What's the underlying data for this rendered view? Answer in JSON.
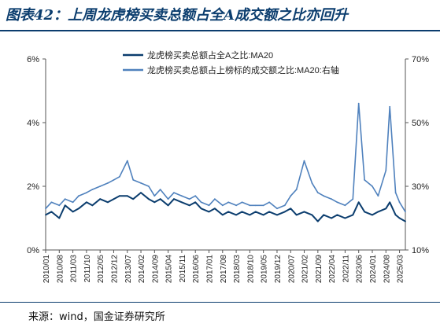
{
  "header": {
    "title": "图表42：上周龙虎榜买卖总额占全A成交额之比亦回升"
  },
  "footer": {
    "source": "来源：wind，国金证券研究所"
  },
  "chart_data": {
    "type": "line",
    "x_tick_labels": [
      "2010/01",
      "2010/08",
      "2011/03",
      "2011/10",
      "2012/05",
      "2012/12",
      "2013/07",
      "2014/02",
      "2014/09",
      "2015/04",
      "2015/11",
      "2016/06",
      "2017/01",
      "2017/08",
      "2018/03",
      "2018/10",
      "2019/05",
      "2019/12",
      "2020/07",
      "2021/02",
      "2021/09",
      "2022/04",
      "2022/11",
      "2023/06",
      "2024/01",
      "2024/08",
      "2025/03"
    ],
    "x_range": [
      "2010/01",
      "2025/06"
    ],
    "left_axis": {
      "ticks": [
        "0%",
        "2%",
        "4%",
        "6%"
      ],
      "ylim": [
        0,
        6
      ]
    },
    "right_axis": {
      "ticks": [
        "10%",
        "30%",
        "50%",
        "70%"
      ],
      "ylim": [
        10,
        70
      ]
    },
    "legend_position": "top-center",
    "series": [
      {
        "name": "龙虎榜买卖总额占全A之比:MA20",
        "axis": "left",
        "color": "#0b3d6e",
        "points": [
          [
            "2010/01",
            1.1
          ],
          [
            "2010/04",
            1.2
          ],
          [
            "2010/08",
            1.0
          ],
          [
            "2010/11",
            1.4
          ],
          [
            "2011/03",
            1.2
          ],
          [
            "2011/06",
            1.3
          ],
          [
            "2011/10",
            1.5
          ],
          [
            "2012/01",
            1.4
          ],
          [
            "2012/05",
            1.6
          ],
          [
            "2012/09",
            1.5
          ],
          [
            "2012/12",
            1.6
          ],
          [
            "2013/03",
            1.7
          ],
          [
            "2013/07",
            1.7
          ],
          [
            "2013/10",
            1.6
          ],
          [
            "2014/02",
            1.8
          ],
          [
            "2014/06",
            1.6
          ],
          [
            "2014/09",
            1.5
          ],
          [
            "2014/12",
            1.6
          ],
          [
            "2015/04",
            1.4
          ],
          [
            "2015/07",
            1.6
          ],
          [
            "2015/11",
            1.5
          ],
          [
            "2016/03",
            1.4
          ],
          [
            "2016/06",
            1.5
          ],
          [
            "2016/09",
            1.3
          ],
          [
            "2017/01",
            1.2
          ],
          [
            "2017/04",
            1.3
          ],
          [
            "2017/08",
            1.1
          ],
          [
            "2017/11",
            1.2
          ],
          [
            "2018/03",
            1.1
          ],
          [
            "2018/06",
            1.2
          ],
          [
            "2018/10",
            1.1
          ],
          [
            "2019/01",
            1.2
          ],
          [
            "2019/05",
            1.1
          ],
          [
            "2019/08",
            1.2
          ],
          [
            "2019/12",
            1.1
          ],
          [
            "2020/04",
            1.2
          ],
          [
            "2020/07",
            1.3
          ],
          [
            "2020/10",
            1.1
          ],
          [
            "2021/02",
            1.2
          ],
          [
            "2021/06",
            1.1
          ],
          [
            "2021/09",
            0.9
          ],
          [
            "2021/12",
            1.1
          ],
          [
            "2022/04",
            1.0
          ],
          [
            "2022/07",
            1.1
          ],
          [
            "2022/11",
            1.0
          ],
          [
            "2023/03",
            1.1
          ],
          [
            "2023/06",
            1.5
          ],
          [
            "2023/09",
            1.2
          ],
          [
            "2024/01",
            1.1
          ],
          [
            "2024/04",
            1.2
          ],
          [
            "2024/08",
            1.3
          ],
          [
            "2024/10",
            1.5
          ],
          [
            "2025/01",
            1.1
          ],
          [
            "2025/03",
            1.0
          ],
          [
            "2025/06",
            0.9
          ]
        ]
      },
      {
        "name": "龙虎榜买卖总额占上榜标的成交额之比:MA20:右轴",
        "axis": "right",
        "color": "#4f81bd",
        "points": [
          [
            "2010/01",
            23
          ],
          [
            "2010/04",
            25
          ],
          [
            "2010/08",
            24
          ],
          [
            "2010/11",
            26
          ],
          [
            "2011/03",
            25
          ],
          [
            "2011/06",
            27
          ],
          [
            "2011/10",
            28
          ],
          [
            "2012/01",
            29
          ],
          [
            "2012/05",
            30
          ],
          [
            "2012/09",
            31
          ],
          [
            "2012/12",
            32
          ],
          [
            "2013/03",
            33
          ],
          [
            "2013/07",
            38
          ],
          [
            "2013/10",
            32
          ],
          [
            "2014/02",
            31
          ],
          [
            "2014/06",
            30
          ],
          [
            "2014/09",
            27
          ],
          [
            "2014/12",
            29
          ],
          [
            "2015/04",
            26
          ],
          [
            "2015/07",
            28
          ],
          [
            "2015/11",
            27
          ],
          [
            "2016/03",
            26
          ],
          [
            "2016/06",
            27
          ],
          [
            "2016/09",
            25
          ],
          [
            "2017/01",
            24
          ],
          [
            "2017/04",
            26
          ],
          [
            "2017/08",
            24
          ],
          [
            "2017/11",
            25
          ],
          [
            "2018/03",
            24
          ],
          [
            "2018/06",
            25
          ],
          [
            "2018/10",
            24
          ],
          [
            "2019/01",
            24
          ],
          [
            "2019/05",
            24
          ],
          [
            "2019/08",
            25
          ],
          [
            "2019/12",
            23
          ],
          [
            "2020/04",
            24
          ],
          [
            "2020/07",
            27
          ],
          [
            "2020/10",
            29
          ],
          [
            "2021/02",
            38
          ],
          [
            "2021/06",
            31
          ],
          [
            "2021/09",
            28
          ],
          [
            "2021/12",
            27
          ],
          [
            "2022/04",
            26
          ],
          [
            "2022/07",
            25
          ],
          [
            "2022/11",
            24
          ],
          [
            "2023/03",
            26
          ],
          [
            "2023/06",
            56
          ],
          [
            "2023/09",
            32
          ],
          [
            "2024/01",
            30
          ],
          [
            "2024/04",
            27
          ],
          [
            "2024/08",
            35
          ],
          [
            "2024/10",
            55
          ],
          [
            "2025/01",
            28
          ],
          [
            "2025/03",
            25
          ],
          [
            "2025/06",
            22
          ]
        ]
      }
    ]
  }
}
